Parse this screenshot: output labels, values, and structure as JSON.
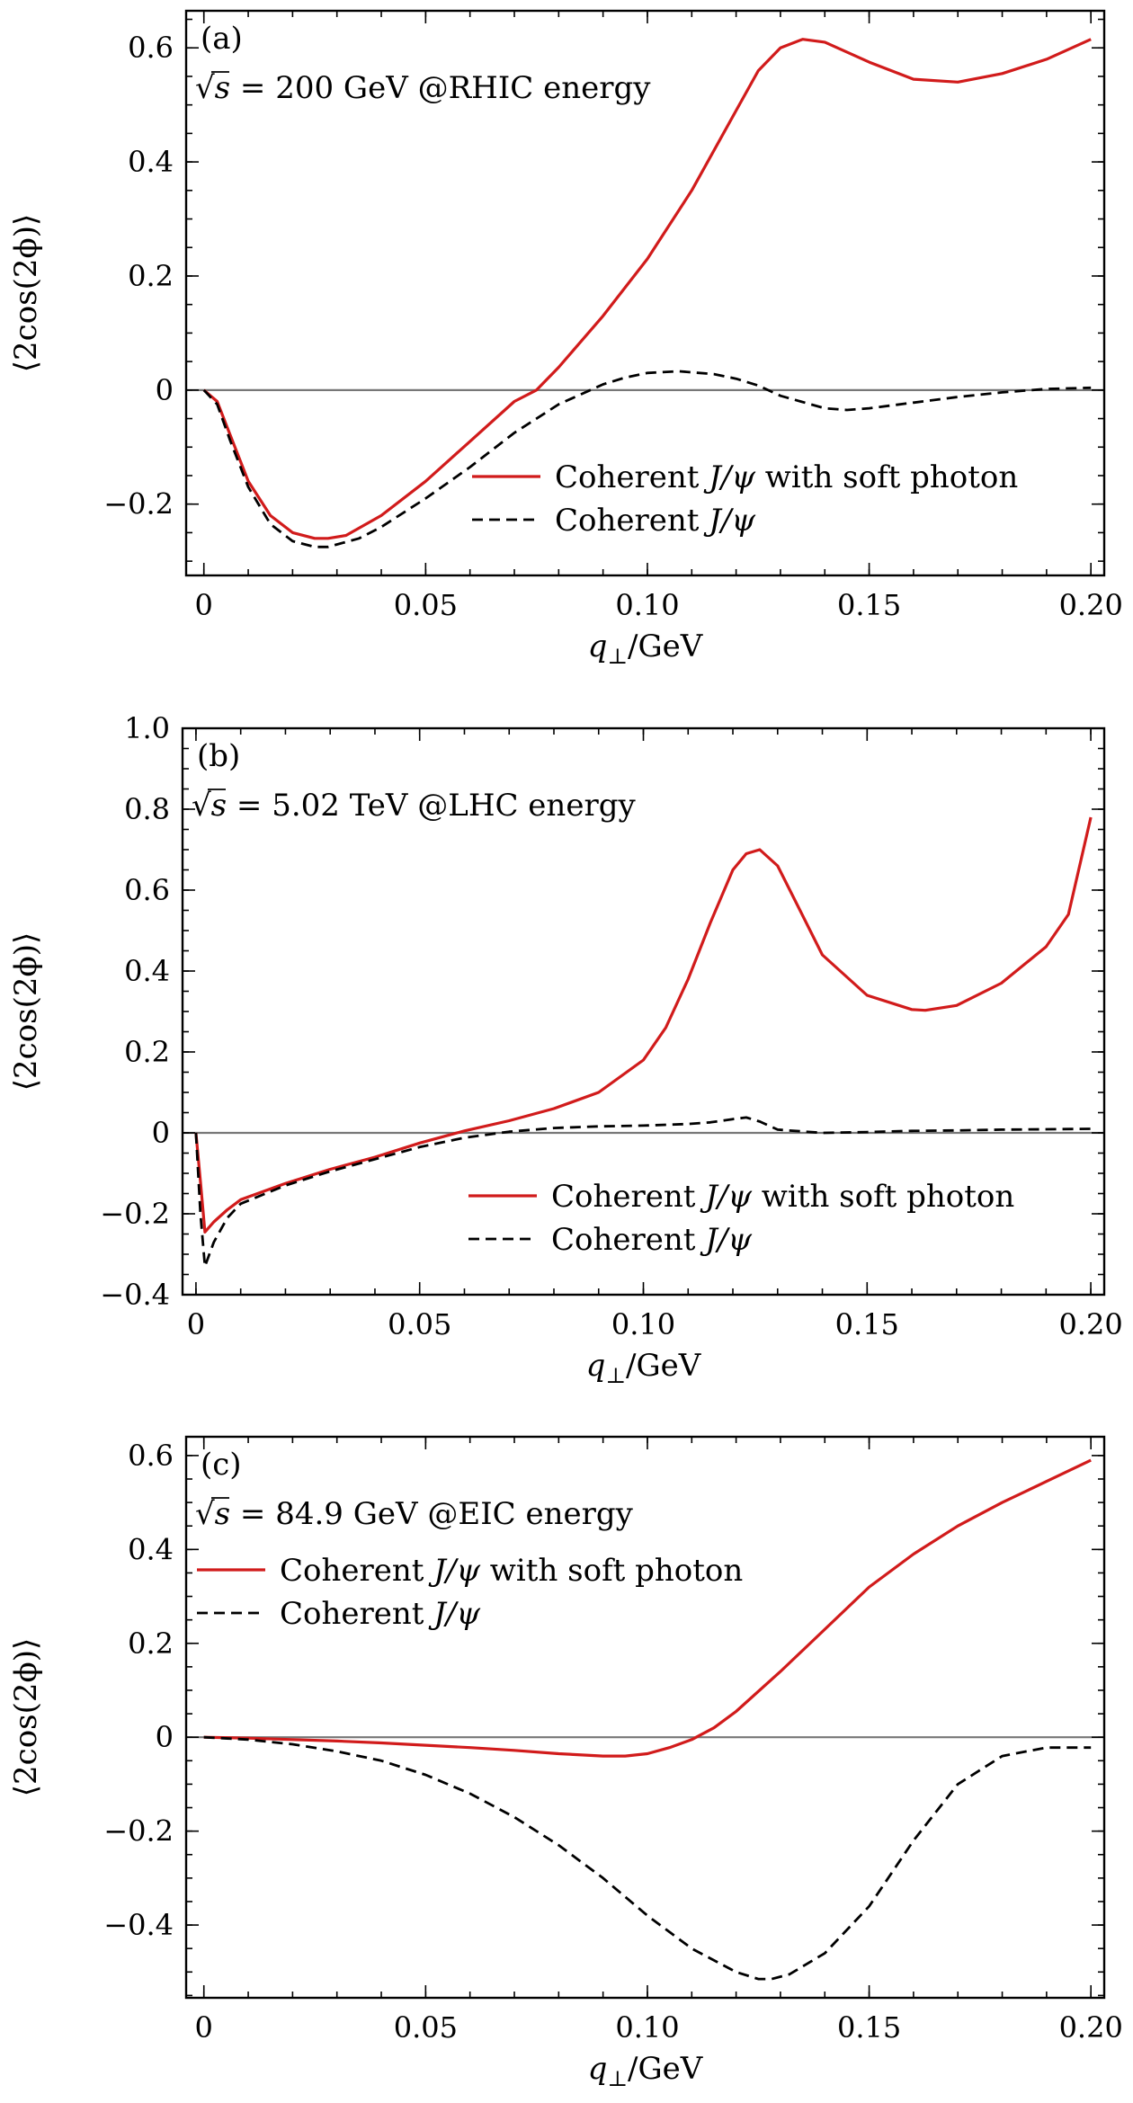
{
  "chart_data": [
    {
      "type": "line",
      "panel_label": "(a)",
      "energy": {
        "sqrt_symbol": "√",
        "sqrt_var": "s",
        "text": " = 200 GeV @RHIC energy"
      },
      "xlabel": {
        "var": "q",
        "sub": "⊥",
        "unit": "/GeV"
      },
      "ylabel": "⟨2cos(2ϕ)⟩",
      "xlim": [
        -0.004,
        0.203
      ],
      "ylim": [
        -0.325,
        0.665
      ],
      "xticks": [
        0,
        0.05,
        0.1,
        0.15,
        0.2
      ],
      "xtick_labels": [
        "0",
        "0.05",
        "0.10",
        "0.15",
        "0.20"
      ],
      "yticks": [
        -0.2,
        0,
        0.2,
        0.4,
        0.6
      ],
      "ytick_labels": [
        "−0.2",
        "0",
        "0.2",
        "0.4",
        "0.6"
      ],
      "legend_position": "lower-right",
      "series": [
        {
          "name_parts": {
            "pre": "Coherent ",
            "var": "J/ψ",
            "post": " with soft photon"
          },
          "style": "solid",
          "color": "#d11b1b",
          "x": [
            0,
            0.003,
            0.006,
            0.01,
            0.015,
            0.02,
            0.025,
            0.028,
            0.032,
            0.04,
            0.05,
            0.06,
            0.07,
            0.075,
            0.08,
            0.09,
            0.1,
            0.11,
            0.12,
            0.125,
            0.13,
            0.135,
            0.14,
            0.15,
            0.16,
            0.17,
            0.18,
            0.19,
            0.2
          ],
          "y": [
            0,
            -0.02,
            -0.08,
            -0.16,
            -0.22,
            -0.25,
            -0.26,
            -0.26,
            -0.255,
            -0.22,
            -0.16,
            -0.09,
            -0.02,
            0.0,
            0.04,
            0.13,
            0.23,
            0.35,
            0.49,
            0.56,
            0.6,
            0.615,
            0.61,
            0.575,
            0.545,
            0.54,
            0.555,
            0.58,
            0.615
          ]
        },
        {
          "name_parts": {
            "pre": "Coherent ",
            "var": "J/ψ",
            "post": ""
          },
          "style": "dashed",
          "color": "#000000",
          "x": [
            0,
            0.003,
            0.006,
            0.01,
            0.015,
            0.02,
            0.025,
            0.028,
            0.035,
            0.04,
            0.05,
            0.06,
            0.07,
            0.08,
            0.09,
            0.095,
            0.1,
            0.107,
            0.115,
            0.12,
            0.125,
            0.13,
            0.14,
            0.145,
            0.15,
            0.16,
            0.17,
            0.18,
            0.19,
            0.2
          ],
          "y": [
            0,
            -0.025,
            -0.09,
            -0.17,
            -0.235,
            -0.265,
            -0.275,
            -0.275,
            -0.26,
            -0.24,
            -0.19,
            -0.135,
            -0.075,
            -0.025,
            0.01,
            0.022,
            0.03,
            0.033,
            0.028,
            0.02,
            0.008,
            -0.01,
            -0.032,
            -0.035,
            -0.032,
            -0.022,
            -0.012,
            -0.004,
            0.002,
            0.004
          ]
        }
      ]
    },
    {
      "type": "line",
      "panel_label": "(b)",
      "energy": {
        "sqrt_symbol": "√",
        "sqrt_var": "s",
        "text": " = 5.02 TeV @LHC energy"
      },
      "xlabel": {
        "var": "q",
        "sub": "⊥",
        "unit": "/GeV"
      },
      "ylabel": "⟨2cos(2ϕ)⟩",
      "xlim": [
        -0.003,
        0.203
      ],
      "ylim": [
        -0.4,
        1.0
      ],
      "xticks": [
        0,
        0.05,
        0.1,
        0.15,
        0.2
      ],
      "xtick_labels": [
        "0",
        "0.05",
        "0.10",
        "0.15",
        "0.20"
      ],
      "yticks": [
        -0.4,
        -0.2,
        0,
        0.2,
        0.4,
        0.6,
        0.8,
        1.0
      ],
      "ytick_labels": [
        "−0.4",
        "−0.2",
        "0",
        "0.2",
        "0.4",
        "0.6",
        "0.8",
        "1.0"
      ],
      "legend_position": "lower-right",
      "series": [
        {
          "name_parts": {
            "pre": "Coherent ",
            "var": "J/ψ",
            "post": " with soft photon"
          },
          "style": "solid",
          "color": "#d11b1b",
          "x": [
            0,
            0.001,
            0.002,
            0.004,
            0.007,
            0.01,
            0.02,
            0.03,
            0.04,
            0.05,
            0.06,
            0.07,
            0.08,
            0.09,
            0.1,
            0.105,
            0.11,
            0.115,
            0.12,
            0.123,
            0.126,
            0.13,
            0.135,
            0.14,
            0.15,
            0.16,
            0.163,
            0.17,
            0.18,
            0.19,
            0.195,
            0.2
          ],
          "y": [
            0,
            -0.12,
            -0.245,
            -0.22,
            -0.19,
            -0.165,
            -0.125,
            -0.09,
            -0.06,
            -0.025,
            0.005,
            0.03,
            0.06,
            0.1,
            0.18,
            0.26,
            0.38,
            0.52,
            0.65,
            0.69,
            0.7,
            0.66,
            0.55,
            0.44,
            0.34,
            0.305,
            0.303,
            0.315,
            0.37,
            0.46,
            0.54,
            0.78
          ]
        },
        {
          "name_parts": {
            "pre": "Coherent ",
            "var": "J/ψ",
            "post": ""
          },
          "style": "dashed",
          "color": "#000000",
          "x": [
            0,
            0.001,
            0.002,
            0.004,
            0.007,
            0.01,
            0.02,
            0.03,
            0.04,
            0.05,
            0.06,
            0.07,
            0.08,
            0.09,
            0.1,
            0.11,
            0.115,
            0.12,
            0.123,
            0.126,
            0.13,
            0.14,
            0.15,
            0.16,
            0.17,
            0.18,
            0.19,
            0.2
          ],
          "y": [
            0,
            -0.2,
            -0.33,
            -0.27,
            -0.21,
            -0.175,
            -0.13,
            -0.095,
            -0.065,
            -0.035,
            -0.012,
            0.003,
            0.012,
            0.016,
            0.018,
            0.022,
            0.026,
            0.034,
            0.038,
            0.028,
            0.008,
            0.0,
            0.002,
            0.005,
            0.006,
            0.008,
            0.009,
            0.01
          ]
        }
      ]
    },
    {
      "type": "line",
      "panel_label": "(c)",
      "energy": {
        "sqrt_symbol": "√",
        "sqrt_var": "s",
        "text": " = 84.9 GeV @EIC energy"
      },
      "xlabel": {
        "var": "q",
        "sub": "⊥",
        "unit": "/GeV"
      },
      "ylabel": "⟨2cos(2ϕ)⟩",
      "xlim": [
        -0.004,
        0.203
      ],
      "ylim": [
        -0.555,
        0.64
      ],
      "xticks": [
        0,
        0.05,
        0.1,
        0.15,
        0.2
      ],
      "xtick_labels": [
        "0",
        "0.05",
        "0.10",
        "0.15",
        "0.20"
      ],
      "yticks": [
        -0.4,
        -0.2,
        0,
        0.2,
        0.4,
        0.6
      ],
      "ytick_labels": [
        "−0.4",
        "−0.2",
        "0",
        "0.2",
        "0.4",
        "0.6"
      ],
      "legend_position": "upper-left",
      "series": [
        {
          "name_parts": {
            "pre": "Coherent ",
            "var": "J/ψ",
            "post": " with soft photon"
          },
          "style": "solid",
          "color": "#d11b1b",
          "x": [
            0,
            0.01,
            0.02,
            0.03,
            0.04,
            0.05,
            0.06,
            0.07,
            0.08,
            0.09,
            0.095,
            0.1,
            0.105,
            0.11,
            0.115,
            0.12,
            0.13,
            0.14,
            0.15,
            0.16,
            0.17,
            0.18,
            0.19,
            0.2
          ],
          "y": [
            0,
            -0.002,
            -0.005,
            -0.008,
            -0.012,
            -0.017,
            -0.022,
            -0.028,
            -0.035,
            -0.04,
            -0.04,
            -0.035,
            -0.022,
            -0.005,
            0.02,
            0.055,
            0.14,
            0.23,
            0.32,
            0.39,
            0.45,
            0.5,
            0.545,
            0.59
          ]
        },
        {
          "name_parts": {
            "pre": "Coherent ",
            "var": "J/ψ",
            "post": ""
          },
          "style": "dashed",
          "color": "#000000",
          "x": [
            0,
            0.01,
            0.02,
            0.03,
            0.04,
            0.05,
            0.06,
            0.07,
            0.08,
            0.09,
            0.1,
            0.11,
            0.12,
            0.125,
            0.128,
            0.132,
            0.14,
            0.15,
            0.16,
            0.17,
            0.18,
            0.19,
            0.2
          ],
          "y": [
            0,
            -0.005,
            -0.015,
            -0.03,
            -0.05,
            -0.08,
            -0.12,
            -0.17,
            -0.23,
            -0.3,
            -0.38,
            -0.45,
            -0.5,
            -0.515,
            -0.515,
            -0.505,
            -0.46,
            -0.36,
            -0.22,
            -0.1,
            -0.04,
            -0.022,
            -0.022
          ]
        }
      ]
    }
  ]
}
